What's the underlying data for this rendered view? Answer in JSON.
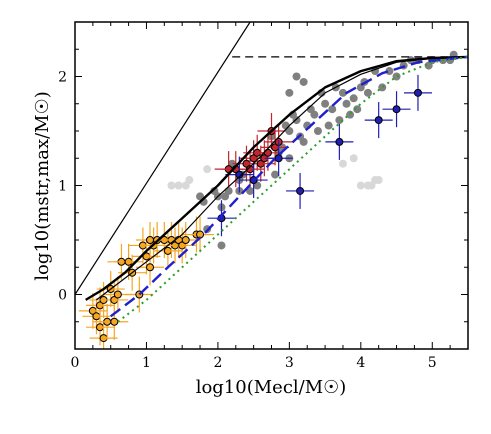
{
  "chart_data": {
    "type": "scatter",
    "title": "",
    "xlabel": "log10(Mecl/M☉)",
    "ylabel": "log10(mstr,max/M☉)",
    "xlim": [
      0,
      5.5
    ],
    "ylim": [
      -0.5,
      2.5
    ],
    "x_ticks": [
      "0",
      "1",
      "2",
      "3",
      "4",
      "5"
    ],
    "y_ticks": [
      "0",
      "1",
      "2"
    ],
    "x_tick_values": [
      0,
      1,
      2,
      3,
      4,
      5
    ],
    "y_tick_values": [
      0,
      1,
      2
    ],
    "grid": false,
    "series": [
      {
        "kind": "points",
        "color": "#808080",
        "points": [
          [
            1.75,
            0.9
          ],
          [
            1.8,
            0.85
          ],
          [
            1.85,
            0.6
          ],
          [
            1.95,
            0.95
          ],
          [
            2.0,
            0.9
          ],
          [
            2.05,
            0.8
          ],
          [
            2.05,
            0.45
          ],
          [
            2.1,
            0.9
          ],
          [
            2.15,
            0.95
          ],
          [
            2.2,
            1.2
          ],
          [
            2.25,
            1.15
          ],
          [
            2.3,
            0.95
          ],
          [
            2.3,
            1.05
          ],
          [
            2.35,
            1.1
          ],
          [
            2.4,
            1.2
          ],
          [
            2.45,
            0.95
          ],
          [
            2.5,
            1.05
          ],
          [
            2.55,
            1.0
          ],
          [
            2.6,
            1.2
          ],
          [
            2.65,
            1.25
          ],
          [
            2.7,
            1.3
          ],
          [
            2.75,
            1.45
          ],
          [
            2.8,
            1.1
          ],
          [
            2.85,
            1.3
          ],
          [
            2.9,
            1.35
          ],
          [
            2.95,
            1.55
          ],
          [
            3.0,
            1.5
          ],
          [
            3.0,
            1.25
          ],
          [
            3.05,
            1.65
          ],
          [
            3.1,
            1.6
          ],
          [
            3.15,
            1.45
          ],
          [
            3.2,
            1.4
          ],
          [
            3.25,
            1.55
          ],
          [
            3.3,
            1.7
          ],
          [
            3.35,
            1.65
          ],
          [
            3.4,
            1.5
          ],
          [
            3.45,
            1.85
          ],
          [
            3.5,
            1.75
          ],
          [
            3.55,
            1.55
          ],
          [
            3.6,
            1.7
          ],
          [
            3.65,
            1.9
          ],
          [
            3.7,
            1.6
          ],
          [
            3.75,
            1.85
          ],
          [
            3.8,
            1.75
          ],
          [
            3.85,
            1.65
          ],
          [
            3.9,
            1.8
          ],
          [
            3.95,
            1.7
          ],
          [
            4.0,
            1.9
          ],
          [
            4.05,
            1.95
          ],
          [
            4.1,
            1.85
          ],
          [
            4.2,
            2.05
          ],
          [
            4.3,
            1.9
          ],
          [
            4.4,
            2.05
          ],
          [
            4.5,
            2.0
          ],
          [
            4.6,
            2.1
          ],
          [
            4.7,
            2.15
          ],
          [
            4.8,
            2.15
          ],
          [
            4.95,
            2.1
          ],
          [
            5.0,
            2.15
          ],
          [
            5.15,
            2.15
          ],
          [
            5.25,
            2.15
          ],
          [
            5.3,
            2.2
          ],
          [
            3.0,
            1.85
          ],
          [
            3.1,
            2.0
          ],
          [
            3.2,
            1.95
          ]
        ]
      },
      {
        "kind": "points",
        "color": "#d8d8d8",
        "points": [
          [
            1.35,
            1.0
          ],
          [
            1.45,
            1.0
          ],
          [
            1.55,
            1.0
          ],
          [
            1.6,
            1.05
          ],
          [
            1.85,
            1.15
          ],
          [
            3.75,
            1.2
          ],
          [
            3.9,
            1.25
          ],
          [
            4.0,
            1.0
          ],
          [
            4.1,
            1.0
          ],
          [
            4.15,
            1.0
          ],
          [
            4.2,
            1.05
          ],
          [
            4.25,
            1.05
          ]
        ]
      },
      {
        "kind": "points-with-errors",
        "color": "#f5a623",
        "edge": "#000000",
        "points": [
          [
            0.25,
            -0.15
          ],
          [
            0.3,
            -0.2
          ],
          [
            0.35,
            -0.1
          ],
          [
            0.35,
            -0.3
          ],
          [
            0.4,
            -0.05
          ],
          [
            0.4,
            -0.4
          ],
          [
            0.45,
            -0.25
          ],
          [
            0.5,
            0.05
          ],
          [
            0.55,
            -0.25
          ],
          [
            0.55,
            -0.05
          ],
          [
            0.6,
            0.0
          ],
          [
            0.65,
            0.3
          ],
          [
            0.75,
            0.3
          ],
          [
            0.8,
            0.2
          ],
          [
            0.9,
            0.0
          ],
          [
            0.95,
            0.45
          ],
          [
            1.0,
            0.35
          ],
          [
            1.05,
            0.25
          ],
          [
            1.1,
            0.45
          ],
          [
            1.15,
            0.5
          ],
          [
            1.25,
            0.5
          ],
          [
            1.3,
            0.4
          ],
          [
            1.35,
            0.5
          ],
          [
            1.4,
            0.45
          ],
          [
            1.45,
            0.5
          ],
          [
            1.5,
            0.45
          ],
          [
            1.55,
            0.5
          ],
          [
            1.7,
            0.55
          ],
          [
            1.75,
            0.55
          ],
          [
            1.05,
            0.5
          ]
        ]
      },
      {
        "kind": "points-with-errors",
        "color": "#c1272d",
        "edge": "#000000",
        "points": [
          [
            2.15,
            1.15
          ],
          [
            2.25,
            1.15
          ],
          [
            2.4,
            1.2
          ],
          [
            2.45,
            1.15
          ],
          [
            2.5,
            1.25
          ],
          [
            2.55,
            1.3
          ],
          [
            2.6,
            1.2
          ],
          [
            2.65,
            1.25
          ],
          [
            2.7,
            1.3
          ],
          [
            2.75,
            1.5
          ],
          [
            2.8,
            1.35
          ],
          [
            2.85,
            1.4
          ]
        ]
      },
      {
        "kind": "points-with-errors",
        "color": "#1f1fb4",
        "edge": "#000000",
        "points": [
          [
            2.05,
            0.7
          ],
          [
            2.5,
            1.05
          ],
          [
            2.85,
            1.25
          ],
          [
            3.15,
            0.95
          ],
          [
            3.7,
            1.4
          ],
          [
            4.25,
            1.6
          ],
          [
            4.5,
            1.7
          ],
          [
            4.8,
            1.85
          ],
          [
            2.3,
            1.1
          ]
        ]
      },
      {
        "kind": "line",
        "name": "",
        "color": "#000000",
        "style": "solid-thin",
        "points": [
          [
            0,
            0
          ],
          [
            2.45,
            2.5
          ]
        ]
      },
      {
        "kind": "line",
        "color": "#000000",
        "style": "dashed",
        "points": [
          [
            2.2,
            2.18
          ],
          [
            5.5,
            2.18
          ]
        ]
      },
      {
        "kind": "line",
        "color": "#000000",
        "style": "solid-thick",
        "points": [
          [
            0.15,
            -0.05
          ],
          [
            0.4,
            0.05
          ],
          [
            0.7,
            0.2
          ],
          [
            1.0,
            0.4
          ],
          [
            1.5,
            0.7
          ],
          [
            2.0,
            1.0
          ],
          [
            2.5,
            1.35
          ],
          [
            3.0,
            1.65
          ],
          [
            3.5,
            1.9
          ],
          [
            4.0,
            2.05
          ],
          [
            4.5,
            2.14
          ],
          [
            5.0,
            2.17
          ],
          [
            5.5,
            2.18
          ]
        ]
      },
      {
        "kind": "line",
        "color": "#000000",
        "style": "solid-thin",
        "points": [
          [
            0.3,
            -0.05
          ],
          [
            0.6,
            0.1
          ],
          [
            1.0,
            0.3
          ],
          [
            1.5,
            0.55
          ],
          [
            2.0,
            0.9
          ],
          [
            2.5,
            1.2
          ],
          [
            3.0,
            1.55
          ],
          [
            3.5,
            1.85
          ],
          [
            4.0,
            2.02
          ],
          [
            4.5,
            2.13
          ],
          [
            5.0,
            2.17
          ],
          [
            5.5,
            2.18
          ]
        ]
      },
      {
        "kind": "line",
        "color": "#1f1fd0",
        "style": "dashed-thick",
        "points": [
          [
            0.5,
            -0.2
          ],
          [
            0.9,
            0.0
          ],
          [
            1.3,
            0.25
          ],
          [
            1.8,
            0.55
          ],
          [
            2.3,
            0.9
          ],
          [
            2.8,
            1.25
          ],
          [
            3.3,
            1.55
          ],
          [
            3.8,
            1.85
          ],
          [
            4.3,
            2.03
          ],
          [
            4.8,
            2.13
          ],
          [
            5.5,
            2.18
          ]
        ]
      },
      {
        "kind": "line",
        "color": "#2a9d2a",
        "style": "dotted",
        "points": [
          [
            0.6,
            -0.25
          ],
          [
            1.0,
            -0.05
          ],
          [
            1.5,
            0.25
          ],
          [
            2.0,
            0.55
          ],
          [
            2.5,
            0.85
          ],
          [
            3.0,
            1.15
          ],
          [
            3.5,
            1.45
          ],
          [
            4.0,
            1.75
          ],
          [
            4.5,
            2.0
          ],
          [
            5.0,
            2.13
          ],
          [
            5.5,
            2.18
          ]
        ]
      }
    ]
  }
}
